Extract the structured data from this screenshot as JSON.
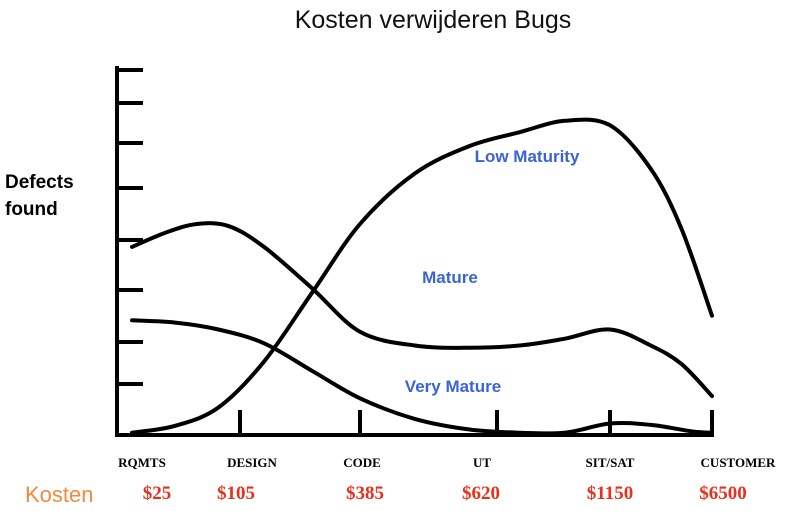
{
  "colors": {
    "series_label": "#3a64d6",
    "cost_values": "#e8301c",
    "cost_caption": "#f08a3c",
    "lines": "#000000"
  },
  "chart_data": {
    "type": "line",
    "title": "Kosten verwijderen Bugs",
    "ylabel": "Defects found",
    "xlabel": "",
    "categories": [
      "RQMTS",
      "DESIGN",
      "CODE",
      "UT",
      "SIT/SAT",
      "CUSTOMER"
    ],
    "cost_caption": "Kosten",
    "costs": [
      "$25",
      "$105",
      "$385",
      "$620",
      "$1150",
      "$6500"
    ],
    "grid": false,
    "ylim": [
      0,
      8
    ],
    "series": [
      {
        "name": "Low Maturity",
        "x": [
          0,
          0.4,
          0.8,
          1.2,
          1.6,
          2.0,
          2.4,
          2.8,
          3.2,
          3.6,
          4.0,
          4.4,
          4.7,
          5.0
        ],
        "values": [
          0.05,
          0.2,
          0.6,
          1.6,
          3.1,
          4.6,
          5.7,
          6.3,
          6.6,
          6.85,
          6.75,
          5.8,
          4.5,
          2.6
        ]
      },
      {
        "name": "Mature",
        "x": [
          0,
          0.3,
          0.6,
          0.9,
          1.2,
          1.6,
          2.0,
          2.4,
          2.8,
          3.2,
          3.6,
          4.0,
          4.4,
          4.7,
          5.0
        ],
        "values": [
          4.1,
          4.4,
          4.6,
          4.55,
          4.1,
          3.2,
          2.25,
          1.95,
          1.9,
          1.95,
          2.1,
          2.3,
          1.95,
          1.55,
          0.85
        ]
      },
      {
        "name": "Very Mature",
        "x": [
          0,
          0.4,
          0.8,
          1.2,
          1.6,
          2.0,
          2.4,
          2.8,
          3.2,
          3.6,
          4.0,
          4.4,
          4.8,
          5.0
        ],
        "values": [
          2.5,
          2.45,
          2.3,
          2.0,
          1.4,
          0.8,
          0.35,
          0.12,
          0.05,
          0.05,
          0.25,
          0.22,
          0.08,
          0.05
        ]
      }
    ]
  }
}
